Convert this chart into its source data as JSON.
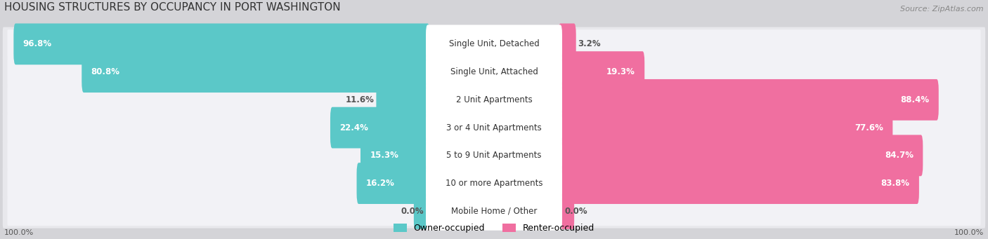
{
  "title": "HOUSING STRUCTURES BY OCCUPANCY IN PORT WASHINGTON",
  "source": "Source: ZipAtlas.com",
  "categories": [
    "Single Unit, Detached",
    "Single Unit, Attached",
    "2 Unit Apartments",
    "3 or 4 Unit Apartments",
    "5 to 9 Unit Apartments",
    "10 or more Apartments",
    "Mobile Home / Other"
  ],
  "owner_pct": [
    96.8,
    80.8,
    11.6,
    22.4,
    15.3,
    16.2,
    0.0
  ],
  "renter_pct": [
    3.2,
    19.3,
    88.4,
    77.6,
    84.7,
    83.8,
    0.0
  ],
  "owner_color": "#5bc8c8",
  "renter_color": "#f06fa0",
  "owner_label": "Owner-occupied",
  "renter_label": "Renter-occupied",
  "axis_label_left": "100.0%",
  "axis_label_right": "100.0%",
  "title_fontsize": 11,
  "source_fontsize": 8,
  "bar_label_fontsize": 8.5,
  "cat_label_fontsize": 8.5,
  "legend_fontsize": 9,
  "bg_color": "#d4d4d8",
  "row_bg_color": "#e8e8ec",
  "row_inner_color": "#f2f2f6"
}
